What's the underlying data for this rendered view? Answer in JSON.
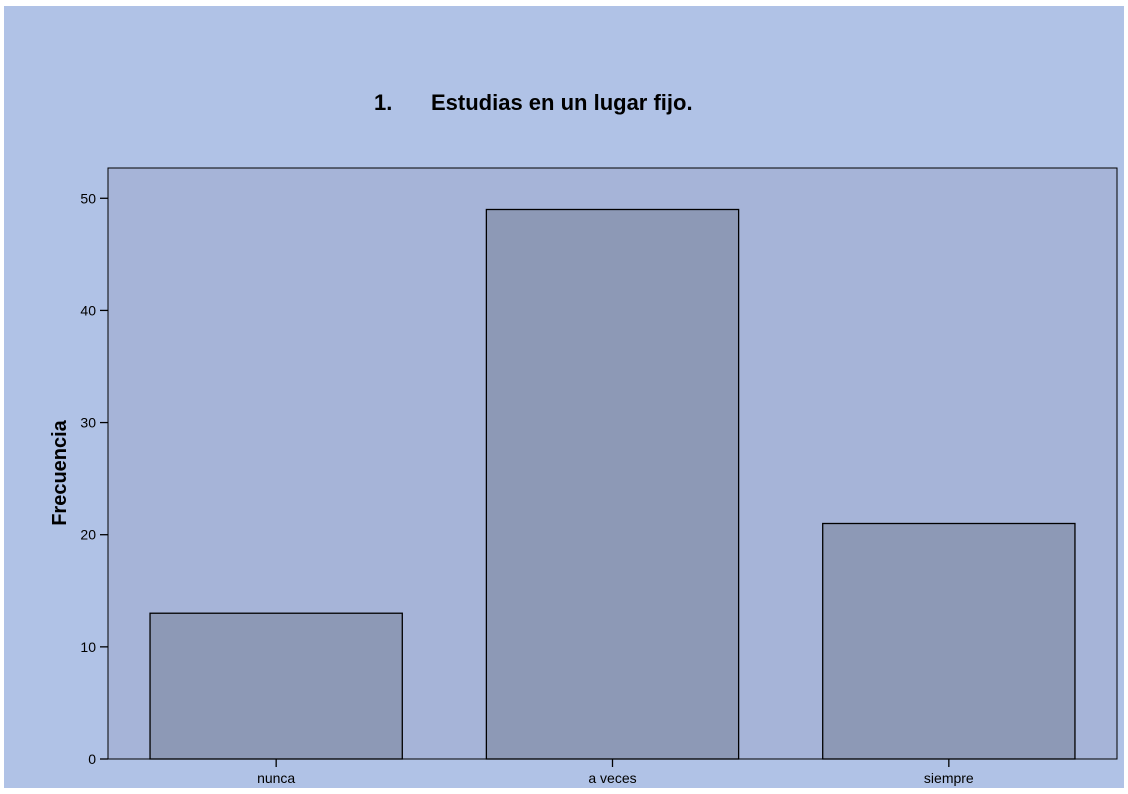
{
  "colors": {
    "page_background": "#b0c2e6",
    "plot_background": "#a6b4d8",
    "bar_fill": "#8d99b6",
    "stroke": "#000000"
  },
  "chart_data": {
    "type": "bar",
    "title_number": "1.",
    "title_text": "Estudias en un lugar fijo.",
    "xlabel": "",
    "ylabel": "Frecuencia",
    "categories": [
      "nunca",
      "a veces",
      "siempre"
    ],
    "values": [
      13,
      49,
      21
    ],
    "ylim": [
      0,
      52.7
    ],
    "yticks": [
      0,
      10,
      20,
      30,
      40,
      50
    ],
    "grid": false,
    "legend": "none"
  }
}
